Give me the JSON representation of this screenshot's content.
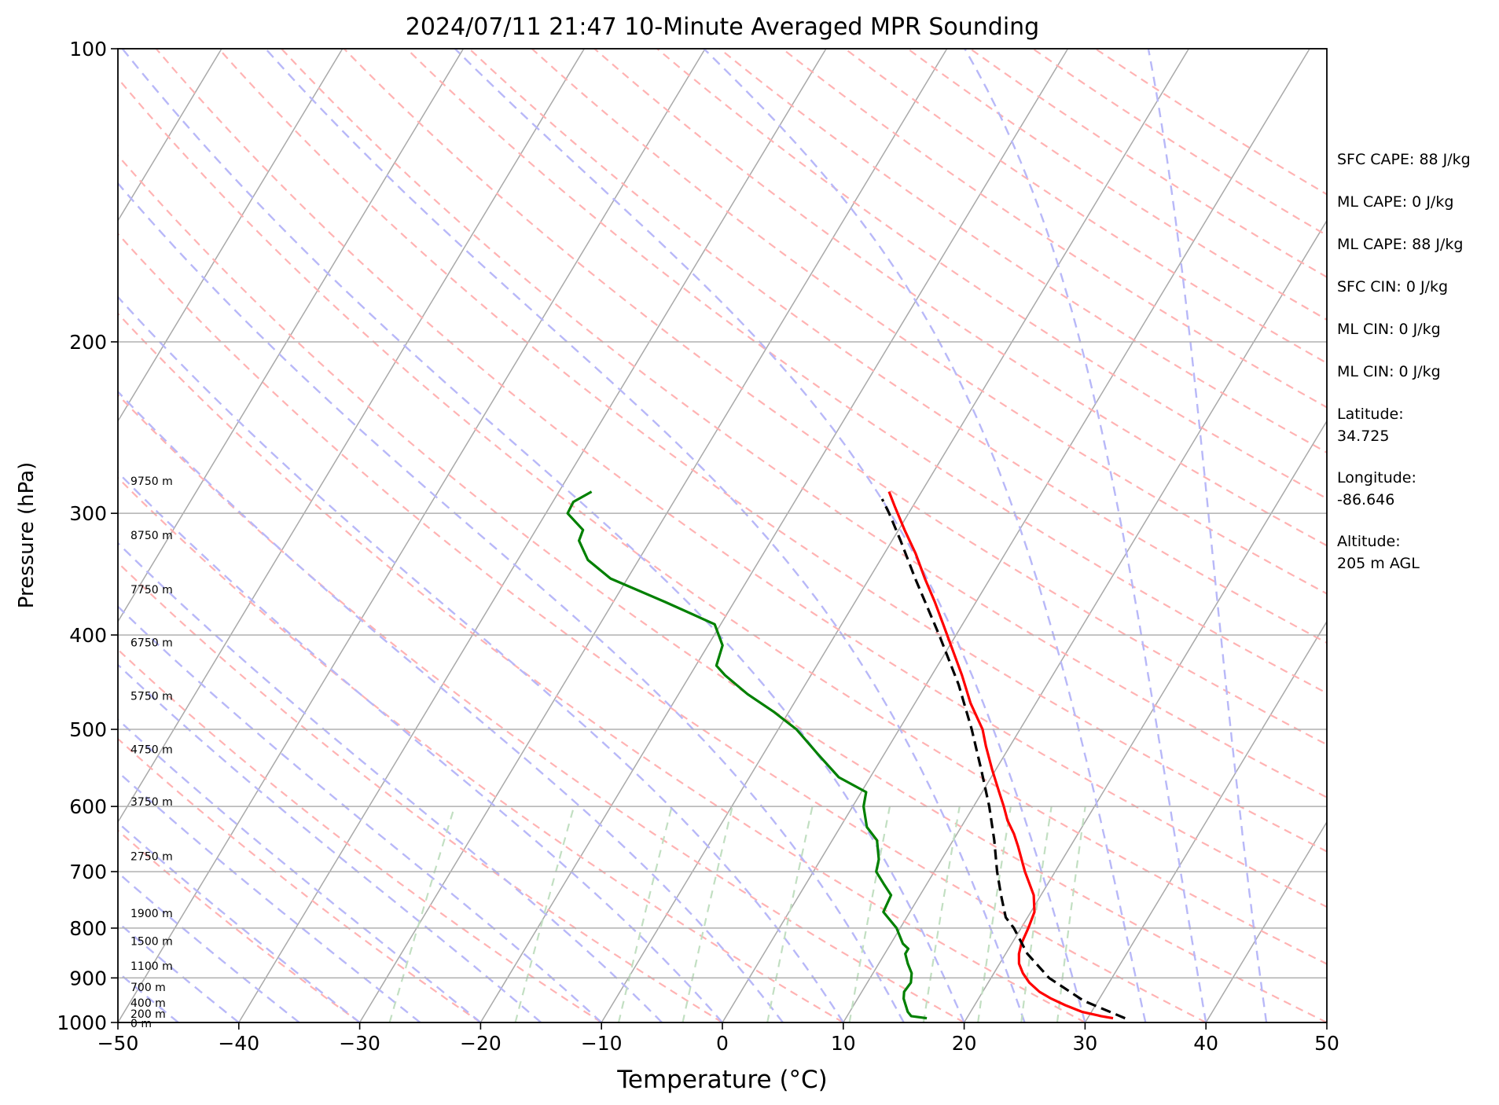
{
  "chart_data": {
    "type": "line",
    "title": "2024/07/11 21:47 10-Minute Averaged MPR Sounding",
    "xlabel": "Temperature (°C)",
    "ylabel": "Pressure (hPa)",
    "xlim": [
      -50,
      50
    ],
    "ylim": [
      1000,
      100
    ],
    "y_scale": "log",
    "grid": true,
    "x_ticks": [
      -50,
      -40,
      -30,
      -20,
      -10,
      0,
      10,
      20,
      30,
      40,
      50
    ],
    "x_tick_labels": [
      "−50",
      "−40",
      "−30",
      "−20",
      "−10",
      "0",
      "10",
      "20",
      "30",
      "40",
      "50"
    ],
    "y_ticks": [
      100,
      200,
      300,
      400,
      500,
      600,
      700,
      800,
      900,
      1000
    ],
    "y_tick_labels": [
      "100",
      "200",
      "300",
      "400",
      "500",
      "600",
      "700",
      "800",
      "900",
      "1000"
    ],
    "height_labels": [
      {
        "text": "9750 m",
        "p": 278
      },
      {
        "text": "8750 m",
        "p": 316
      },
      {
        "text": "7750 m",
        "p": 359
      },
      {
        "text": "6750 m",
        "p": 407
      },
      {
        "text": "5750 m",
        "p": 462
      },
      {
        "text": "4750 m",
        "p": 524
      },
      {
        "text": "3750 m",
        "p": 593
      },
      {
        "text": "2750 m",
        "p": 675
      },
      {
        "text": "1900 m",
        "p": 772
      },
      {
        "text": "1500 m",
        "p": 825
      },
      {
        "text": "1100 m",
        "p": 875
      },
      {
        "text": "700 m",
        "p": 920
      },
      {
        "text": "400 m",
        "p": 955
      },
      {
        "text": "200 m",
        "p": 980
      },
      {
        "text": "0 m",
        "p": 1002
      }
    ],
    "annotations": [
      "SFC CAPE: 88 J/kg",
      "ML CAPE: 0 J/kg",
      "ML CAPE: 88 J/kg",
      "SFC CIN: 0 J/kg",
      "ML CIN: 0 J/kg",
      "ML CIN: 0 J/kg",
      "Latitude:",
      "34.725",
      "Longitude:",
      "-86.646",
      "Altitude:",
      "205 m AGL"
    ],
    "series": [
      {
        "role": "temperature",
        "color": "#ff0000",
        "dash": "solid",
        "p": [
          990,
          985,
          975,
          960,
          945,
          930,
          910,
          890,
          870,
          850,
          830,
          800,
          770,
          740,
          700,
          660,
          640,
          620,
          600,
          580,
          550,
          520,
          500,
          470,
          440,
          410,
          390,
          370,
          350,
          330,
          312,
          295,
          285
        ],
        "t": [
          32.1,
          31,
          29.2,
          27.5,
          26,
          24.7,
          23.4,
          22.4,
          21.6,
          21.1,
          20.8,
          20.6,
          20.3,
          19.4,
          17.5,
          15.7,
          14.7,
          13.5,
          12.5,
          11.4,
          9.7,
          8,
          6.9,
          4.6,
          2.5,
          0.1,
          -1.6,
          -3.4,
          -5.4,
          -7.4,
          -9.5,
          -11.5,
          -12.7
        ]
      },
      {
        "role": "parcel",
        "color": "#000000",
        "dash": "dashed",
        "p": [
          990,
          950,
          900,
          850,
          800,
          780,
          740,
          700,
          650,
          600,
          550,
          500,
          450,
          400,
          350,
          320,
          300,
          290
        ],
        "t": [
          33.1,
          28.8,
          24.8,
          21.8,
          19.4,
          18.2,
          16.7,
          15.2,
          13.4,
          11.3,
          8.8,
          6,
          2.7,
          -1.4,
          -6.2,
          -9.3,
          -11.6,
          -12.9
        ]
      },
      {
        "role": "dewpoint",
        "color": "#008000",
        "dash": "solid",
        "p": [
          990,
          985,
          975,
          960,
          945,
          930,
          910,
          890,
          870,
          850,
          840,
          830,
          800,
          770,
          740,
          720,
          700,
          680,
          650,
          630,
          600,
          580,
          560,
          530,
          500,
          480,
          460,
          440,
          430,
          410,
          390,
          370,
          350,
          335,
          320,
          312,
          300,
          292,
          285
        ],
        "t": [
          16.7,
          15.3,
          14.8,
          14.3,
          13.8,
          13.5,
          13.6,
          13.2,
          12.4,
          11.7,
          11.7,
          11,
          9.7,
          7.8,
          7.6,
          6.4,
          5.2,
          4.8,
          3.7,
          2.2,
          0.9,
          0.4,
          -2.6,
          -5.5,
          -8.5,
          -11.2,
          -14.3,
          -17.1,
          -18.3,
          -18.8,
          -20.5,
          -25.7,
          -31.4,
          -34.2,
          -35.9,
          -36.1,
          -38.2,
          -38.3,
          -37.3
        ]
      }
    ]
  }
}
